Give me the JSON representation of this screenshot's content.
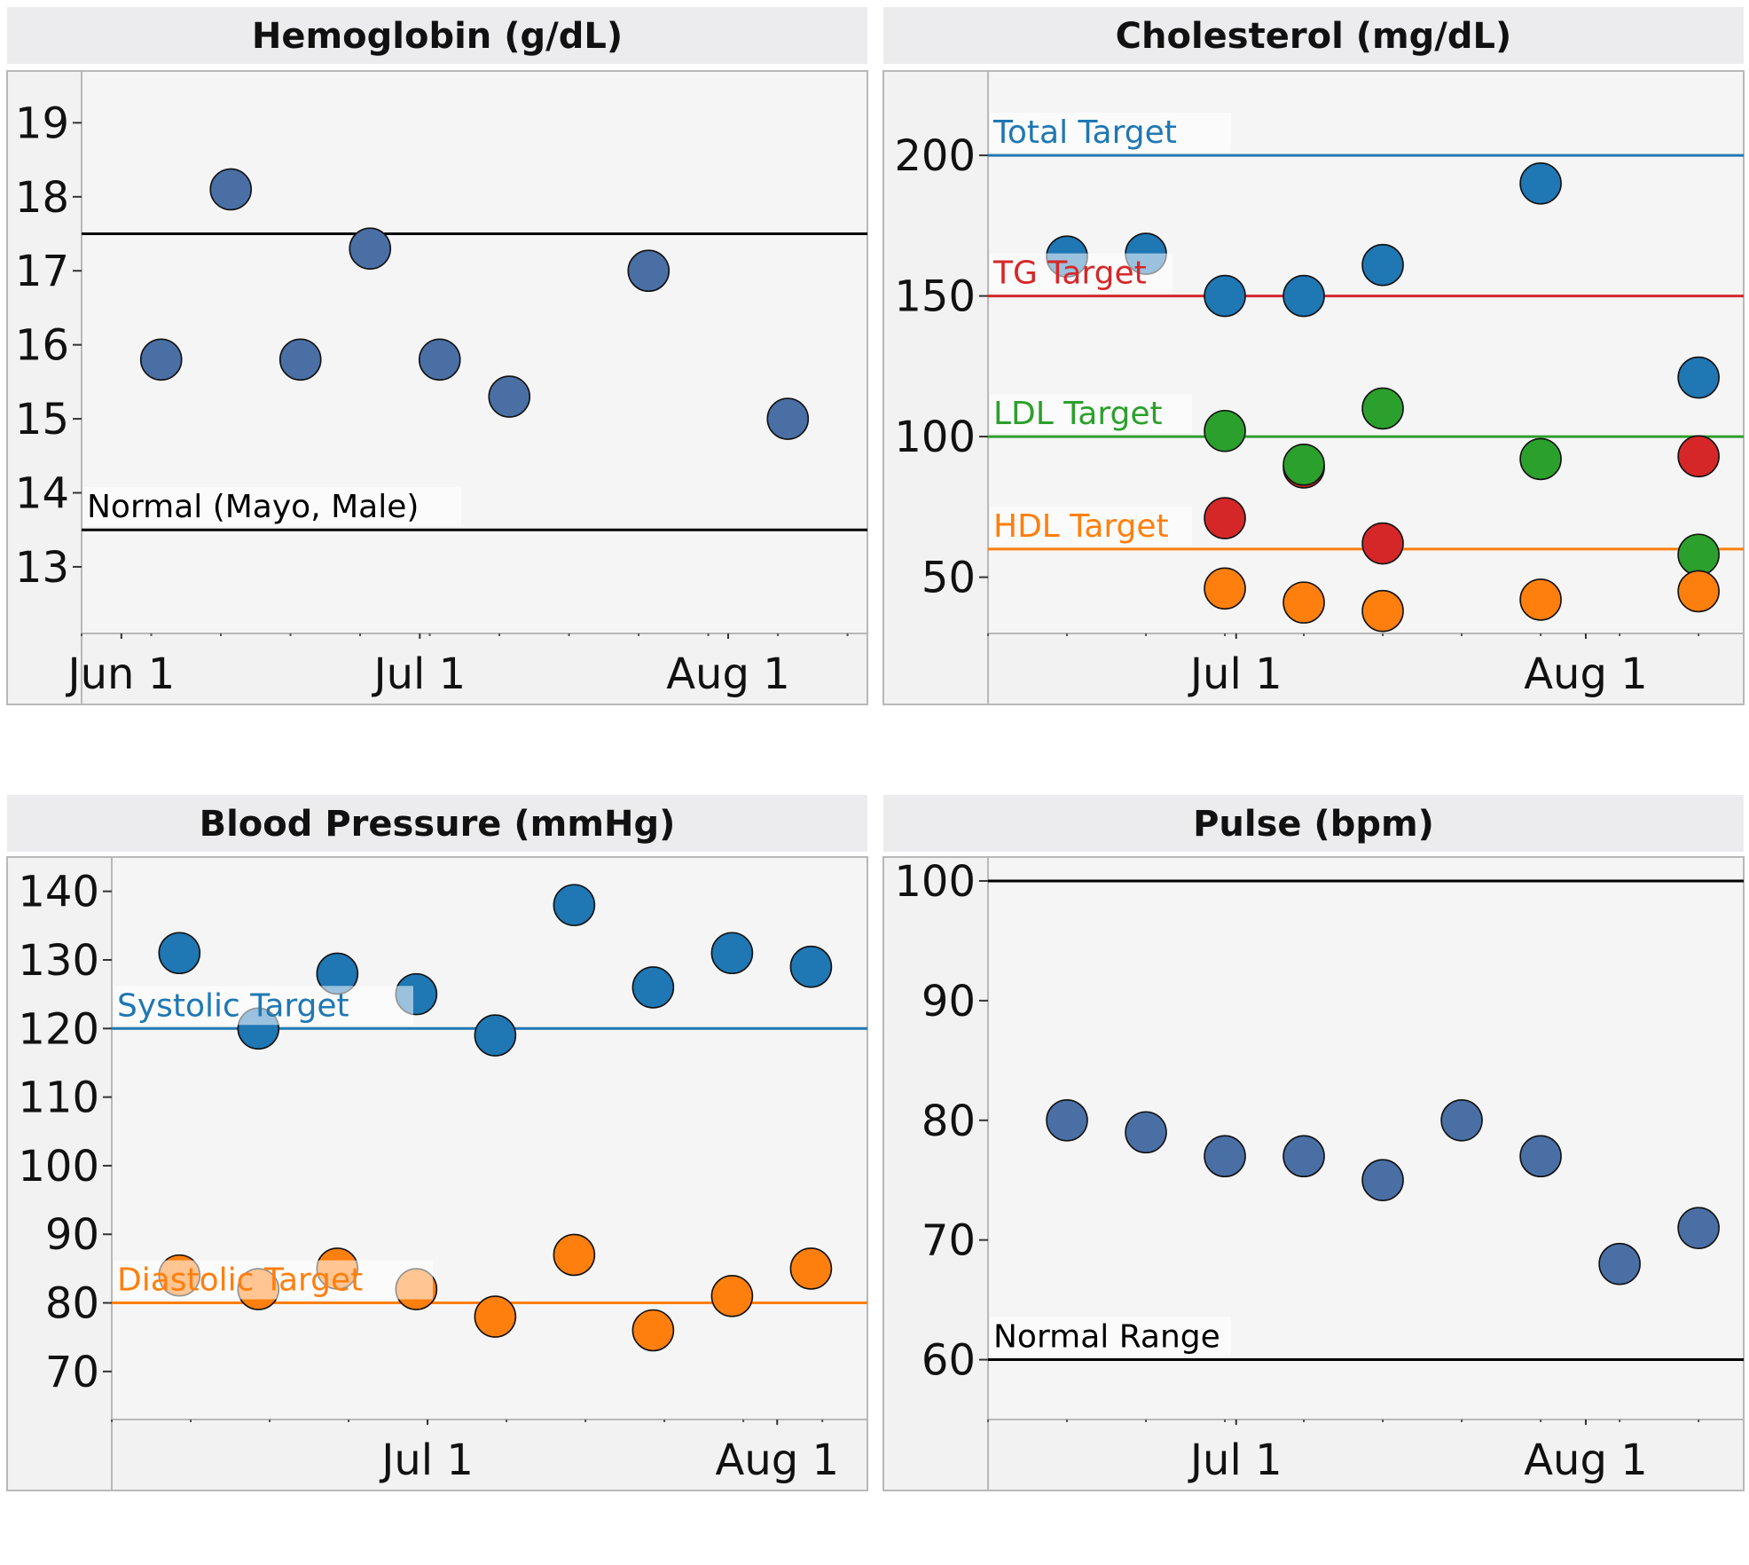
{
  "chart_data": [
    {
      "type": "scatter",
      "title": "Hemoglobin (g/dL)",
      "xlabel": "",
      "ylabel": "",
      "x_ticks": [
        "Jun 1",
        "Jul 1",
        "Aug 1"
      ],
      "y_ticks": [
        13,
        14,
        15,
        16,
        17,
        18,
        19
      ],
      "ylim": [
        12.1,
        19.7
      ],
      "grid": false,
      "series": [
        {
          "color": "#4a6fa5",
          "points": [
            {
              "x": "2017-06-05",
              "y": 15.8
            },
            {
              "x": "2017-06-12",
              "y": 18.1
            },
            {
              "x": "2017-06-19",
              "y": 15.8
            },
            {
              "x": "2017-06-26",
              "y": 17.3
            },
            {
              "x": "2017-07-03",
              "y": 15.8
            },
            {
              "x": "2017-07-10",
              "y": 15.3
            },
            {
              "x": "2017-07-24",
              "y": 17.0
            },
            {
              "x": "2017-08-07",
              "y": 15.0
            }
          ]
        }
      ],
      "reference_lines": [
        {
          "y": 17.5,
          "label": "",
          "color": "#000000"
        },
        {
          "y": 13.5,
          "label": "Normal (Mayo, Male)",
          "color": "#000000"
        }
      ]
    },
    {
      "type": "scatter",
      "title": "Cholesterol (mg/dL)",
      "xlabel": "",
      "ylabel": "",
      "x_ticks": [
        "Jul 1",
        "Aug 1"
      ],
      "y_ticks": [
        50,
        100,
        150,
        200
      ],
      "ylim": [
        30,
        230
      ],
      "grid": false,
      "series": [
        {
          "color": "#1f77b4",
          "points": [
            {
              "x": "2017-06-16",
              "y": 164
            },
            {
              "x": "2017-06-23",
              "y": 165
            },
            {
              "x": "2017-06-30",
              "y": 150
            },
            {
              "x": "2017-07-07",
              "y": 150
            },
            {
              "x": "2017-07-14",
              "y": 161
            },
            {
              "x": "2017-07-28",
              "y": 190
            },
            {
              "x": "2017-08-11",
              "y": 121
            }
          ]
        },
        {
          "color": "#d62728",
          "points": [
            {
              "x": "2017-06-30",
              "y": 71
            },
            {
              "x": "2017-07-07",
              "y": 89
            },
            {
              "x": "2017-07-14",
              "y": 62
            },
            {
              "x": "2017-08-11",
              "y": 93
            }
          ]
        },
        {
          "color": "#2ca02c",
          "points": [
            {
              "x": "2017-06-30",
              "y": 102
            },
            {
              "x": "2017-07-07",
              "y": 90
            },
            {
              "x": "2017-07-14",
              "y": 110
            },
            {
              "x": "2017-07-28",
              "y": 92
            },
            {
              "x": "2017-08-11",
              "y": 58
            }
          ]
        },
        {
          "color": "#ff7f0e",
          "points": [
            {
              "x": "2017-06-30",
              "y": 46
            },
            {
              "x": "2017-07-07",
              "y": 41
            },
            {
              "x": "2017-07-14",
              "y": 38
            },
            {
              "x": "2017-07-28",
              "y": 42
            },
            {
              "x": "2017-08-11",
              "y": 45
            }
          ]
        }
      ],
      "reference_lines": [
        {
          "y": 200,
          "label": "Total Target",
          "color": "#1f77b4"
        },
        {
          "y": 150,
          "label": "TG Target",
          "color": "#d62728"
        },
        {
          "y": 100,
          "label": "LDL Target",
          "color": "#2ca02c"
        },
        {
          "y": 60,
          "label": "HDL Target",
          "color": "#ff7f0e"
        }
      ]
    },
    {
      "type": "scatter",
      "title": "Blood Pressure (mmHg)",
      "xlabel": "",
      "ylabel": "",
      "x_ticks": [
        "Jul 1",
        "Aug 1"
      ],
      "y_ticks": [
        70,
        80,
        90,
        100,
        110,
        120,
        130,
        140
      ],
      "ylim": [
        63,
        145
      ],
      "grid": false,
      "series": [
        {
          "color": "#1f77b4",
          "points": [
            {
              "x": "2017-06-09",
              "y": 131
            },
            {
              "x": "2017-06-16",
              "y": 120
            },
            {
              "x": "2017-06-23",
              "y": 128
            },
            {
              "x": "2017-06-30",
              "y": 125
            },
            {
              "x": "2017-07-07",
              "y": 119
            },
            {
              "x": "2017-07-14",
              "y": 138
            },
            {
              "x": "2017-07-21",
              "y": 126
            },
            {
              "x": "2017-07-28",
              "y": 131
            },
            {
              "x": "2017-08-04",
              "y": 129
            }
          ]
        },
        {
          "color": "#ff7f0e",
          "points": [
            {
              "x": "2017-06-09",
              "y": 84
            },
            {
              "x": "2017-06-16",
              "y": 82
            },
            {
              "x": "2017-06-23",
              "y": 85
            },
            {
              "x": "2017-06-30",
              "y": 82
            },
            {
              "x": "2017-07-07",
              "y": 78
            },
            {
              "x": "2017-07-14",
              "y": 87
            },
            {
              "x": "2017-07-21",
              "y": 76
            },
            {
              "x": "2017-07-28",
              "y": 81
            },
            {
              "x": "2017-08-04",
              "y": 85
            }
          ]
        }
      ],
      "reference_lines": [
        {
          "y": 120,
          "label": "Systolic Target",
          "color": "#1f77b4"
        },
        {
          "y": 80,
          "label": "Diastolic Target",
          "color": "#ff7f0e"
        }
      ]
    },
    {
      "type": "scatter",
      "title": "Pulse (bpm)",
      "xlabel": "",
      "ylabel": "",
      "x_ticks": [
        "Jul 1",
        "Aug 1"
      ],
      "y_ticks": [
        60,
        70,
        80,
        90,
        100
      ],
      "ylim": [
        55,
        102
      ],
      "grid": false,
      "series": [
        {
          "color": "#4a6fa5",
          "points": [
            {
              "x": "2017-06-16",
              "y": 80
            },
            {
              "x": "2017-06-23",
              "y": 79
            },
            {
              "x": "2017-06-30",
              "y": 77
            },
            {
              "x": "2017-07-07",
              "y": 77
            },
            {
              "x": "2017-07-14",
              "y": 75
            },
            {
              "x": "2017-07-21",
              "y": 80
            },
            {
              "x": "2017-07-28",
              "y": 77
            },
            {
              "x": "2017-08-04",
              "y": 68
            },
            {
              "x": "2017-08-11",
              "y": 71
            }
          ]
        }
      ],
      "reference_lines": [
        {
          "y": 100,
          "label": "",
          "color": "#000000"
        },
        {
          "y": 60,
          "label": "Normal Range",
          "color": "#000000"
        }
      ]
    }
  ]
}
